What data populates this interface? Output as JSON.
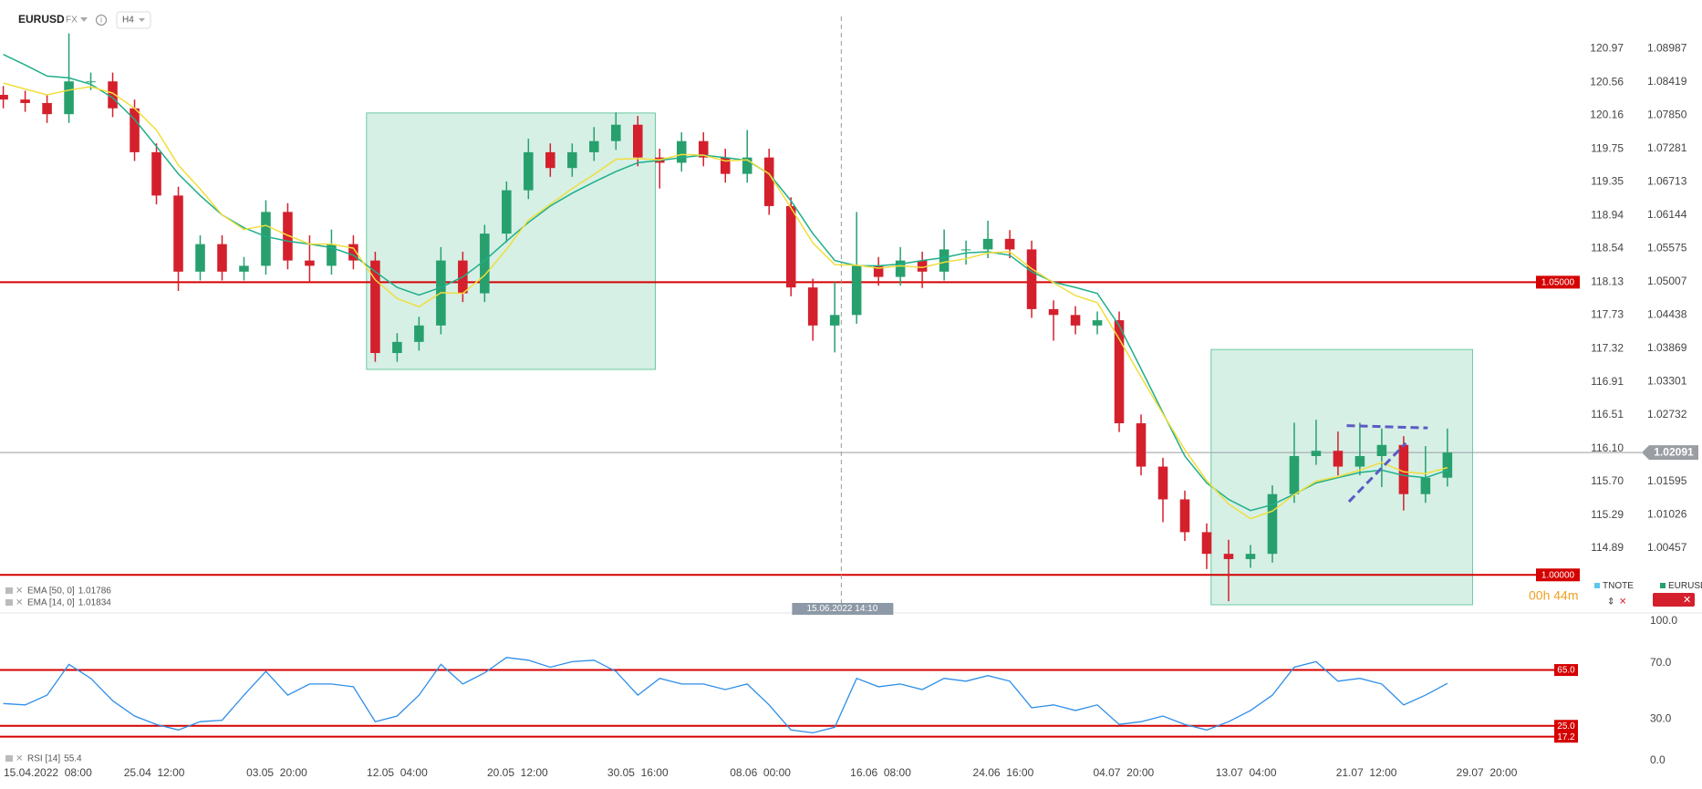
{
  "header": {
    "symbol": "EURUSD",
    "market": "FX",
    "timeframe": "H4"
  },
  "chart_data": [
    {
      "type": "candlestick",
      "xlim": [
        -0.15,
        71.8
      ],
      "ylim": [
        0.9935,
        1.0982
      ],
      "y2lim": [
        114.1,
        121.565
      ],
      "grid": false,
      "xticks": [
        {
          "value": 0,
          "label": "15.04.2022  08:00"
        },
        {
          "value": 6.9,
          "label": "25.04  12:00"
        },
        {
          "value": 12.5,
          "label": "03.05  20:00"
        },
        {
          "value": 18,
          "label": "12.05  04:00"
        },
        {
          "value": 23.5,
          "label": "20.05  12:00"
        },
        {
          "value": 29,
          "label": "30.05  16:00"
        },
        {
          "value": 34.6,
          "label": "08.06  00:00"
        },
        {
          "value": 40.1,
          "label": "16.06  08:00"
        },
        {
          "value": 45.7,
          "label": "24.06  16:00"
        },
        {
          "value": 51.2,
          "label": "04.07  20:00"
        },
        {
          "value": 56.8,
          "label": "13.07  04:00"
        },
        {
          "value": 62.3,
          "label": "21.07  12:00"
        },
        {
          "value": 67.8,
          "label": "29.07  20:00"
        }
      ],
      "yticks": [
        1.08987,
        1.08419,
        {
          "value": 1.0785,
          "label": "1.07850"
        },
        1.07281,
        1.06713,
        1.06144,
        1.05575,
        1.05007,
        1.04438,
        1.03869,
        1.03301,
        1.02732,
        1.01595,
        1.01026,
        1.00457
      ],
      "y2ticks": [
        120.97,
        120.56,
        120.16,
        119.75,
        119.35,
        118.94,
        118.54,
        118.13,
        117.73,
        117.32,
        116.91,
        116.51,
        {
          "value": 116.1,
          "label": "116.10"
        },
        {
          "value": 115.7,
          "label": "115.70"
        },
        115.29,
        114.89
      ],
      "up_color": "#27a06e",
      "down_color": "#d4202c",
      "series": [
        {
          "name": "EURUSD",
          "open": [
            1.082,
            1.0812,
            1.0806,
            1.0787,
            1.0843,
            1.0843,
            1.0797,
            1.0722,
            1.0648,
            1.0518,
            1.0565,
            1.0518,
            1.0528,
            1.062,
            1.0537,
            1.0528,
            1.0565,
            1.0537,
            1.0379,
            1.0398,
            1.0426,
            1.0537,
            1.0481,
            1.0583,
            1.0657,
            1.0722,
            1.0695,
            1.0722,
            1.0741,
            1.0769,
            1.0713,
            1.0704,
            1.0741,
            1.0713,
            1.0685,
            1.0713,
            1.063,
            1.0491,
            1.0426,
            1.0444,
            1.0528,
            1.0509,
            1.0537,
            1.0518,
            1.0556,
            1.0556,
            1.0574,
            1.0556,
            1.0454,
            1.0444,
            1.0426,
            1.0435,
            1.0259,
            1.0185,
            1.0129,
            1.0073,
            1.0036,
            1.0027,
            1.0036,
            1.0138,
            1.0203,
            1.0212,
            1.0185,
            1.0203,
            1.0222,
            1.0138,
            1.0166
          ],
          "high": [
            1.0835,
            1.0827,
            1.0821,
            1.0925,
            1.0858,
            1.0858,
            1.0812,
            1.0737,
            1.0663,
            1.058,
            1.058,
            1.0543,
            1.064,
            1.0635,
            1.058,
            1.059,
            1.058,
            1.0552,
            1.0413,
            1.0441,
            1.056,
            1.0552,
            1.0598,
            1.0672,
            1.0745,
            1.0737,
            1.0737,
            1.0765,
            1.079,
            1.0784,
            1.0728,
            1.0756,
            1.0756,
            1.0728,
            1.076,
            1.0728,
            1.0645,
            1.0506,
            1.05,
            1.062,
            1.0543,
            1.056,
            1.0552,
            1.059,
            1.0571,
            1.0605,
            1.0589,
            1.0571,
            1.0469,
            1.0459,
            1.045,
            1.045,
            1.0274,
            1.02,
            1.0144,
            1.0088,
            1.006,
            1.0051,
            1.0153,
            1.026,
            1.0265,
            1.0245,
            1.026,
            1.025,
            1.0237,
            1.022,
            1.025
          ],
          "low": [
            1.0797,
            1.0791,
            1.0772,
            1.0772,
            1.0828,
            1.0782,
            1.0707,
            1.0633,
            1.0485,
            1.0503,
            1.0503,
            1.0503,
            1.0513,
            1.0522,
            1.05,
            1.0513,
            1.0522,
            1.0364,
            1.0364,
            1.0383,
            1.0411,
            1.0466,
            1.0466,
            1.0568,
            1.0642,
            1.068,
            1.068,
            1.0707,
            1.0726,
            1.0698,
            1.066,
            1.0689,
            1.0698,
            1.067,
            1.067,
            1.0615,
            1.0476,
            1.04,
            1.038,
            1.0429,
            1.0494,
            1.0494,
            1.049,
            1.0503,
            1.053,
            1.0541,
            1.0541,
            1.0439,
            1.04,
            1.0411,
            1.0411,
            1.0244,
            1.017,
            1.009,
            1.0058,
            1.001,
            0.9955,
            1.0012,
            1.0021,
            1.0123,
            1.0188,
            1.017,
            1.017,
            1.015,
            1.011,
            1.0123,
            1.0151
          ],
          "close": [
            1.0812,
            1.0806,
            1.0787,
            1.0843,
            1.0843,
            1.0797,
            1.0722,
            1.0648,
            1.0518,
            1.0565,
            1.0518,
            1.0528,
            1.062,
            1.0537,
            1.0528,
            1.0565,
            1.0537,
            1.0379,
            1.0398,
            1.0426,
            1.0537,
            1.0481,
            1.0583,
            1.0657,
            1.0722,
            1.0695,
            1.0722,
            1.0741,
            1.0769,
            1.0713,
            1.0704,
            1.0741,
            1.0713,
            1.0685,
            1.0713,
            1.063,
            1.0491,
            1.0426,
            1.0444,
            1.0528,
            1.0509,
            1.0537,
            1.0518,
            1.0556,
            1.0556,
            1.0574,
            1.0556,
            1.0454,
            1.0444,
            1.0426,
            1.0435,
            1.0259,
            1.0185,
            1.0129,
            1.0073,
            1.0036,
            1.0027,
            1.0036,
            1.0138,
            1.0203,
            1.0212,
            1.0185,
            1.0203,
            1.0222,
            1.0138,
            1.0166,
            1.02091
          ]
        }
      ],
      "lines": [
        {
          "name": "EMA [50, 0]",
          "color": "#1fae8a",
          "values": [
            1.0889,
            1.0871,
            1.0852,
            1.0849,
            1.0838,
            1.0815,
            1.0778,
            1.0732,
            1.0685,
            1.0648,
            1.0615,
            1.0593,
            1.0578,
            1.057,
            1.0565,
            1.0559,
            1.0546,
            1.0518,
            1.0491,
            1.0478,
            1.0491,
            1.0509,
            1.0537,
            1.057,
            1.0602,
            1.063,
            1.0652,
            1.0671,
            1.0689,
            1.0704,
            1.0708,
            1.0713,
            1.0717,
            1.0713,
            1.0708,
            1.0685,
            1.0639,
            1.0583,
            1.0537,
            1.0528,
            1.0528,
            1.0531,
            1.0537,
            1.0542,
            1.055,
            1.0552,
            1.0546,
            1.0518,
            1.05,
            1.0491,
            1.0481,
            1.0426,
            1.0352,
            1.0277,
            1.0203,
            1.0157,
            1.0129,
            1.011,
            1.012,
            1.0138,
            1.0157,
            1.0166,
            1.0175,
            1.0179,
            1.017,
            1.0166,
            1.01786
          ]
        },
        {
          "name": "EMA [14, 0]",
          "color": "#f0de3c",
          "values": [
            1.084,
            1.083,
            1.082,
            1.0828,
            1.0834,
            1.0823,
            1.0797,
            1.076,
            1.07,
            1.0659,
            1.0615,
            1.059,
            1.0597,
            1.058,
            1.0565,
            1.0565,
            1.0558,
            1.0504,
            1.0472,
            1.0458,
            1.0482,
            1.0481,
            1.0512,
            1.0556,
            1.0606,
            1.0633,
            1.066,
            1.0684,
            1.071,
            1.0711,
            1.0709,
            1.0718,
            1.0717,
            1.0707,
            1.0709,
            1.0685,
            1.0627,
            1.0567,
            1.053,
            1.0529,
            1.0524,
            1.0528,
            1.0525,
            1.0534,
            1.054,
            1.055,
            1.0552,
            1.0523,
            1.0499,
            1.0477,
            1.0465,
            1.0403,
            1.0338,
            1.0275,
            1.0214,
            1.0161,
            1.0121,
            1.0096,
            1.0109,
            1.0137,
            1.016,
            1.0168,
            1.0179,
            1.0192,
            1.0176,
            1.0173,
            1.01834
          ]
        }
      ],
      "hlines": [
        {
          "value": 1.05,
          "label": "1.05000",
          "color": "#d50000"
        },
        {
          "value": 1.0,
          "label": "1.00000",
          "color": "#d50000"
        },
        {
          "value": 1.02091,
          "label": "1.02091",
          "color": "#9a9ea3"
        }
      ],
      "boxes": [
        {
          "x": [
            16.6,
            29.8
          ],
          "y": [
            1.0351,
            1.0789
          ]
        },
        {
          "x": [
            55.2,
            67.15
          ],
          "y": [
            0.9949,
            1.0385
          ]
        }
      ],
      "trendlines": [
        {
          "x": [
            61.4,
            65.1
          ],
          "y": [
            1.0255,
            1.0251
          ],
          "color": "#5b5bc4"
        },
        {
          "x": [
            61.5,
            64.1
          ],
          "y": [
            1.0125,
            1.0225
          ],
          "color": "#5b5bc4"
        }
      ],
      "vline": {
        "x": 38.3,
        "label": "15.06.2022 14:10"
      },
      "legend": [
        "TNOTE",
        "EURUSD"
      ],
      "countdown": "00h 44m"
    },
    {
      "type": "line",
      "ylim": [
        0,
        100
      ],
      "yticks": [
        {
          "value": 100,
          "label": "100.0"
        },
        {
          "value": 70,
          "label": "70.0"
        },
        {
          "value": 30,
          "label": "30.0"
        },
        {
          "value": 0,
          "label": "0.0"
        }
      ],
      "series": [
        {
          "name": "RSI [14]",
          "color": "#2e8ee8",
          "values": [
            41,
            40,
            47,
            69,
            59,
            43,
            32,
            26,
            22,
            28,
            29,
            47,
            64,
            47,
            55,
            55,
            53,
            28,
            32,
            47,
            69,
            55,
            63,
            74,
            72,
            67,
            71,
            72,
            64,
            47,
            59,
            55,
            55,
            51,
            55,
            40,
            22,
            20,
            24,
            59,
            53,
            55,
            51,
            59,
            57,
            61,
            57,
            38,
            40,
            36,
            40,
            26,
            28,
            32,
            26,
            22,
            28,
            36,
            47,
            67,
            71,
            57,
            59,
            55,
            40,
            47,
            55.4
          ]
        }
      ],
      "hlines": [
        {
          "value": 65,
          "label": "65.0",
          "color": "#d50000"
        },
        {
          "value": 25,
          "label": "25.0",
          "color": "#d50000"
        },
        {
          "value": 17.2,
          "label": "17.2",
          "color": "#d50000"
        }
      ]
    }
  ]
}
